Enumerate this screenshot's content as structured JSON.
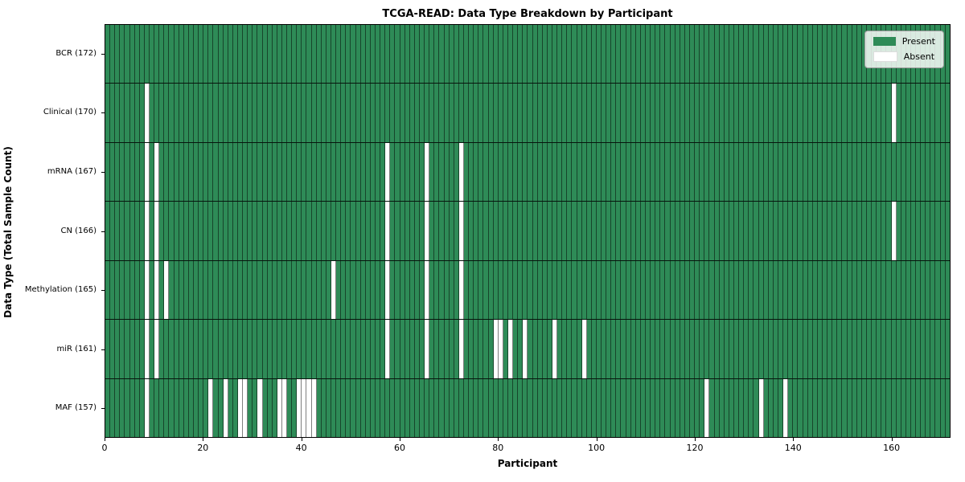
{
  "figure": {
    "title": "TCGA-READ: Data Type Breakdown by Participant"
  },
  "axes": {
    "xlabel": "Participant",
    "ylabel": "Data Type (Total Sample Count)"
  },
  "legend": {
    "items": [
      {
        "label": "Present",
        "color": "#2e8b57"
      },
      {
        "label": "Absent",
        "color": "#ffffff"
      }
    ]
  },
  "colors": {
    "present": "#2e8b57",
    "absent": "#ffffff",
    "cell_border": "rgba(0,0,0,0.5)",
    "row_separator": "#000000",
    "axis": "#000000"
  },
  "chart_data": {
    "type": "heatmap",
    "title": "TCGA-READ: Data Type Breakdown by Participant",
    "xlabel": "Participant",
    "ylabel": "Data Type (Total Sample Count)",
    "n_participants": 172,
    "x_ticks": [
      0,
      20,
      40,
      60,
      80,
      100,
      120,
      140,
      160
    ],
    "xlim": [
      0,
      172
    ],
    "grid": "cell-borders",
    "legend_position": "upper right",
    "value_legend": {
      "present": "Present",
      "absent": "Absent"
    },
    "categories": [
      "BCR (172)",
      "Clinical (170)",
      "mRNA (167)",
      "CN (166)",
      "Methylation (165)",
      "miR (161)",
      "MAF (157)"
    ],
    "rows": [
      {
        "label": "BCR (172)",
        "data_type": "BCR",
        "total_samples": 172,
        "absent_participants": []
      },
      {
        "label": "Clinical (170)",
        "data_type": "Clinical",
        "total_samples": 170,
        "absent_participants": [
          8,
          160
        ]
      },
      {
        "label": "mRNA (167)",
        "data_type": "mRNA",
        "total_samples": 167,
        "absent_participants": [
          8,
          10,
          57,
          65,
          72
        ]
      },
      {
        "label": "CN (166)",
        "data_type": "CN",
        "total_samples": 166,
        "absent_participants": [
          8,
          10,
          57,
          65,
          72,
          160
        ]
      },
      {
        "label": "Methylation (165)",
        "data_type": "Methylation",
        "total_samples": 165,
        "absent_participants": [
          8,
          10,
          12,
          46,
          57,
          65,
          72
        ]
      },
      {
        "label": "miR (161)",
        "data_type": "miR",
        "total_samples": 161,
        "absent_participants": [
          8,
          10,
          57,
          65,
          72,
          79,
          80,
          82,
          85,
          91,
          97
        ]
      },
      {
        "label": "MAF (157)",
        "data_type": "MAF",
        "total_samples": 157,
        "absent_participants": [
          8,
          21,
          24,
          27,
          28,
          31,
          35,
          36,
          39,
          40,
          41,
          42,
          122,
          133,
          138
        ]
      }
    ]
  }
}
